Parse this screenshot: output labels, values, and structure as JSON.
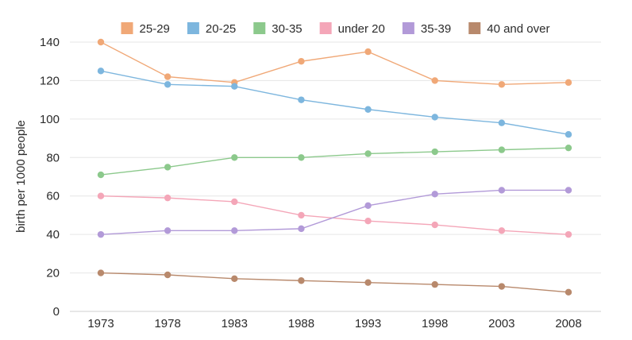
{
  "chart_data": {
    "type": "line",
    "title": "",
    "xlabel": "",
    "ylabel": "birth per 1000 people",
    "x": [
      "1973",
      "1978",
      "1983",
      "1988",
      "1993",
      "1998",
      "2003",
      "2008"
    ],
    "ylim": [
      0,
      140
    ],
    "yticks": [
      0,
      20,
      40,
      60,
      80,
      100,
      120,
      140
    ],
    "grid": "horizontal",
    "legend_position": "top",
    "series": [
      {
        "name": "25-29",
        "color": "#f0a877",
        "values": [
          140,
          122,
          119,
          130,
          135,
          120,
          118,
          119
        ]
      },
      {
        "name": "20-25",
        "color": "#7db6de",
        "values": [
          125,
          118,
          117,
          110,
          105,
          101,
          98,
          92
        ]
      },
      {
        "name": "30-35",
        "color": "#8cc98c",
        "values": [
          71,
          75,
          80,
          80,
          82,
          83,
          84,
          85
        ]
      },
      {
        "name": "under 20",
        "color": "#f4a6b8",
        "values": [
          60,
          59,
          57,
          50,
          47,
          45,
          42,
          40
        ]
      },
      {
        "name": "35-39",
        "color": "#b29ad8",
        "values": [
          40,
          42,
          42,
          43,
          55,
          61,
          63,
          63
        ]
      },
      {
        "name": "40 and over",
        "color": "#b8896c",
        "values": [
          20,
          19,
          17,
          16,
          15,
          14,
          13,
          10
        ]
      }
    ]
  }
}
